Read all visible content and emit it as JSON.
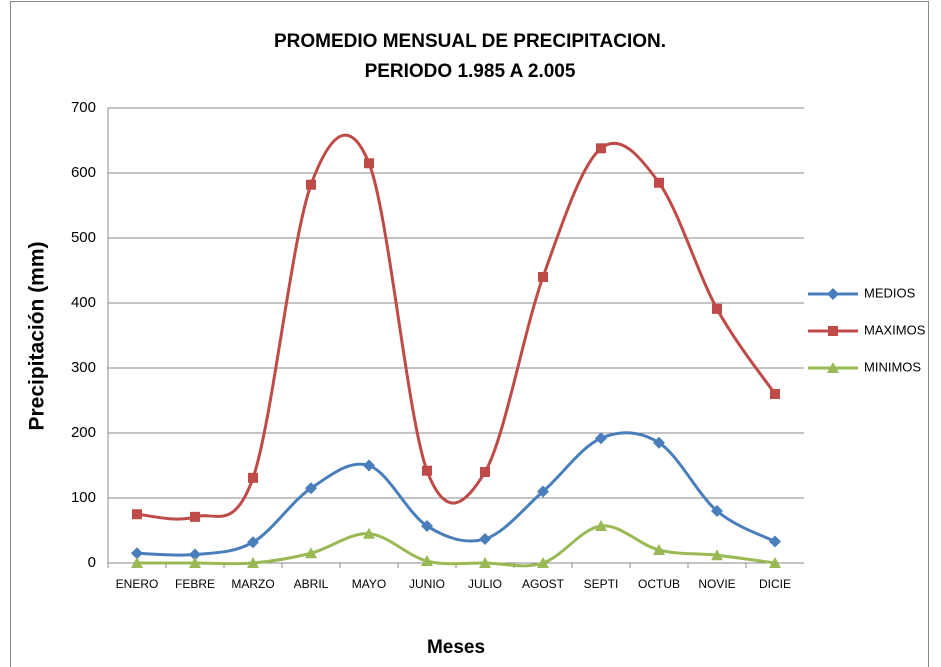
{
  "chart_data": {
    "type": "line",
    "smooth": true,
    "title": "PROMEDIO MENSUAL DE PRECIPITACION.",
    "subtitle": "PERIODO 1.985 A 2.005",
    "x_label": "Meses",
    "y_label": "Precipitación (mm)",
    "categories": [
      "ENERO",
      "FEBRE",
      "MARZO",
      "ABRIL",
      "MAYO",
      "JUNIO",
      "JULIO",
      "AGOST",
      "SEPTI",
      "OCTUB",
      "NOVIE",
      "DICIE"
    ],
    "series": [
      {
        "name": "MEDIOS",
        "color": "#4a7ebb",
        "marker": "diamond",
        "values": [
          15,
          13,
          32,
          115,
          150,
          57,
          37,
          110,
          192,
          185,
          80,
          33
        ]
      },
      {
        "name": "MAXIMOS",
        "color": "#be4b48",
        "marker": "square",
        "values": [
          75,
          71,
          131,
          582,
          615,
          142,
          140,
          440,
          638,
          585,
          391,
          260
        ]
      },
      {
        "name": "MINIMOS",
        "color": "#98b954",
        "marker": "triangle",
        "values": [
          0,
          0,
          0,
          15,
          45,
          3,
          0,
          0,
          57,
          20,
          12,
          0
        ]
      }
    ],
    "ylim": [
      0,
      700
    ],
    "yticks": [
      0,
      100,
      200,
      300,
      400,
      500,
      600,
      700
    ],
    "grid": true,
    "legend": "right"
  }
}
